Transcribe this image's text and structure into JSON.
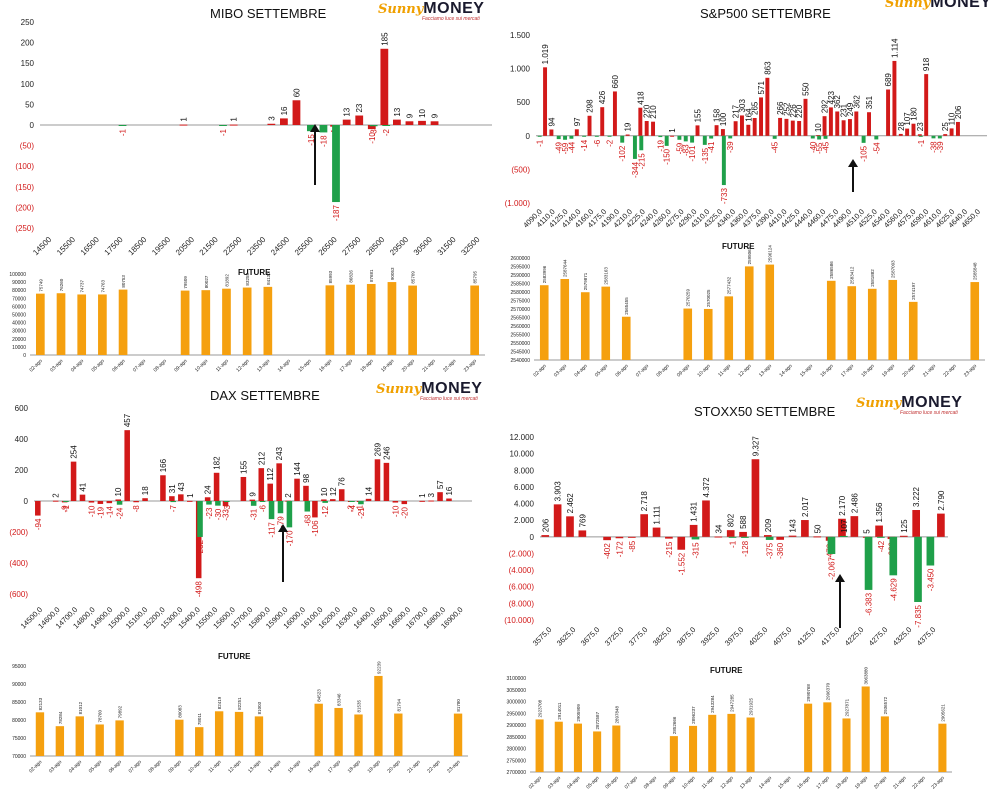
{
  "brand": {
    "sunny": "Sunny",
    "money": "MONEY",
    "tagline": "Facciamo luce sui mercati"
  },
  "colors": {
    "positive": "#1fa04a",
    "negative": "#d21919",
    "future": "#f5a00f",
    "axis": "#999999"
  },
  "future_label": "FUTURE",
  "chart_data": [
    {
      "id": "mibo",
      "type": "bar",
      "title": "MIBO SETTEMBRE",
      "ylim": [
        -250,
        250
      ],
      "yticks": [
        250,
        200,
        150,
        100,
        50,
        0,
        -50,
        -100,
        -150,
        -200,
        -250
      ],
      "ytick_labels": [
        "250",
        "200",
        "150",
        "100",
        "50",
        "0",
        "(50)",
        "(100)",
        "(150)",
        "(200)",
        "(250)"
      ],
      "x_tick_labels": [
        "14500",
        "15500",
        "16500",
        "17500",
        "18500",
        "19500",
        "20500",
        "21500",
        "22500",
        "23500",
        "24500",
        "25500",
        "26500",
        "27500",
        "28500",
        "29500",
        "30500",
        "31500",
        "32500"
      ],
      "n_slots": 36,
      "series": [
        {
          "name": "Call",
          "values": [
            null,
            null,
            null,
            null,
            null,
            null,
            null,
            null,
            null,
            null,
            null,
            1,
            null,
            null,
            null,
            1,
            null,
            null,
            3,
            16,
            60,
            null,
            null,
            -4,
            13,
            23,
            -10,
            185,
            13,
            9,
            10,
            9,
            null,
            null,
            null,
            null
          ]
        },
        {
          "name": "Put",
          "values": [
            null,
            null,
            null,
            null,
            null,
            null,
            -1,
            null,
            null,
            null,
            null,
            null,
            null,
            null,
            -1,
            null,
            null,
            null,
            null,
            null,
            null,
            -15,
            -18,
            -187,
            null,
            null,
            -3,
            -2,
            null,
            null,
            null,
            null,
            null,
            null,
            null,
            null
          ]
        }
      ]
    },
    {
      "id": "spx",
      "type": "bar",
      "title": "S&P500 SETTEMBRE",
      "ylim": [
        -1000,
        1500
      ],
      "yticks": [
        1500,
        1000,
        500,
        0,
        -500,
        -1000
      ],
      "ytick_labels": [
        "1.500",
        "1.000",
        "500",
        "0",
        "(500)",
        "(1.000)"
      ],
      "x_tick_labels": [
        "4090,0",
        "4110,0",
        "4125,0",
        "4140,0",
        "4160,0",
        "4175,0",
        "4190,0",
        "4210,0",
        "4225,0",
        "4240,0",
        "4260,0",
        "4275,0",
        "4290,0",
        "4310,0",
        "4325,0",
        "4340,0",
        "4360,0",
        "4375,0",
        "4390,0",
        "4410,0",
        "4425,0",
        "4440,0",
        "4460,0",
        "4475,0",
        "4490,0",
        "4510,0",
        "4525,0",
        "4540,0",
        "4560,0",
        "4575,0",
        "4590,0",
        "4610,0",
        "4625,0",
        "4640,0",
        "4650,0"
      ],
      "n_slots": 71,
      "series": [
        {
          "name": "Call",
          "values": [
            null,
            1019,
            94,
            null,
            null,
            null,
            97,
            null,
            298,
            null,
            426,
            null,
            660,
            null,
            19,
            null,
            418,
            220,
            210,
            null,
            null,
            1,
            null,
            null,
            null,
            155,
            null,
            null,
            158,
            100,
            null,
            217,
            303,
            164,
            265,
            571,
            863,
            null,
            266,
            252,
            226,
            220,
            550,
            null,
            10,
            292,
            423,
            362,
            231,
            249,
            362,
            null,
            351,
            null,
            null,
            689,
            1114,
            28,
            107,
            180,
            23,
            918,
            null,
            null,
            25,
            110,
            206,
            null,
            null,
            null,
            null
          ]
        },
        {
          "name": "Put",
          "values": [
            -1,
            null,
            null,
            -49,
            -59,
            -44,
            null,
            -14,
            null,
            -6,
            null,
            -2,
            null,
            -102,
            null,
            -344,
            -215,
            null,
            null,
            -19,
            -150,
            null,
            -59,
            -83,
            -101,
            null,
            -135,
            -41,
            null,
            -733,
            -39,
            null,
            null,
            null,
            null,
            null,
            null,
            -45,
            null,
            null,
            null,
            null,
            null,
            -40,
            -55,
            -45,
            null,
            null,
            null,
            null,
            null,
            -105,
            null,
            -54,
            null,
            null,
            null,
            null,
            null,
            null,
            -1,
            null,
            -38,
            -39,
            null,
            null,
            null,
            null,
            null,
            null,
            null
          ]
        }
      ]
    },
    {
      "id": "dax",
      "type": "bar",
      "title": "DAX SETTEMBRE",
      "ylim": [
        -600,
        600
      ],
      "yticks": [
        600,
        400,
        200,
        0,
        -200,
        -400,
        -600
      ],
      "ytick_labels": [
        "600",
        "400",
        "200",
        "0",
        "(200)",
        "(400)",
        "(600)"
      ],
      "x_tick_labels": [
        "14500,0",
        "14600,0",
        "14700,0",
        "14800,0",
        "14900,0",
        "15000,0",
        "15100,0",
        "15200,0",
        "15300,0",
        "15400,0",
        "15500,0",
        "15600,0",
        "15700,0",
        "15800,0",
        "15900,0",
        "16000,0",
        "16100,0",
        "16200,0",
        "16300,0",
        "16400,0",
        "16500,0",
        "16600,0",
        "16700,0",
        "16800,0",
        "16900,0"
      ],
      "n_slots": 49,
      "series": [
        {
          "name": "Call",
          "values": [
            -94,
            null,
            2,
            -9,
            254,
            41,
            -10,
            -19,
            -14,
            10,
            457,
            -8,
            18,
            null,
            166,
            31,
            43,
            1,
            -498,
            24,
            182,
            -33,
            null,
            155,
            9,
            212,
            112,
            243,
            2,
            144,
            98,
            -106,
            10,
            12,
            76,
            -2,
            -1,
            14,
            269,
            246,
            -10,
            -20,
            null,
            1,
            3,
            57,
            16,
            null,
            null
          ]
        },
        {
          "name": "Put",
          "values": [
            null,
            null,
            null,
            -1,
            null,
            null,
            null,
            null,
            null,
            -24,
            null,
            null,
            null,
            null,
            null,
            -7,
            null,
            null,
            -232,
            -23,
            -30,
            -3,
            null,
            null,
            -31,
            -6,
            -117,
            -79,
            -170,
            null,
            -68,
            null,
            -12,
            null,
            null,
            -4,
            -21,
            null,
            null,
            null,
            null,
            null,
            null,
            null,
            null,
            null,
            null,
            null,
            null
          ]
        }
      ]
    },
    {
      "id": "stoxx",
      "type": "bar",
      "title": "STOXX50 SETTEMBRE",
      "ylim": [
        -10000,
        12000
      ],
      "yticks": [
        12000,
        10000,
        8000,
        6000,
        4000,
        2000,
        0,
        -2000,
        -4000,
        -6000,
        -8000,
        -10000
      ],
      "ytick_labels": [
        "12.000",
        "10.000",
        "8.000",
        "6.000",
        "4.000",
        "2.000",
        "0",
        "(2.000)",
        "(4.000)",
        "(6.000)",
        "(8.000)",
        "(10.000)"
      ],
      "x_tick_labels": [
        "3575,0",
        "3625,0",
        "3675,0",
        "3725,0",
        "3775,0",
        "3825,0",
        "3875,0",
        "3925,0",
        "3975,0",
        "4025,0",
        "4075,0",
        "4125,0",
        "4175,0",
        "4225,0",
        "4275,0",
        "4325,0",
        "4375,0"
      ],
      "n_slots": 33,
      "series": [
        {
          "name": "Call",
          "values": [
            206,
            3903,
            2462,
            769,
            null,
            -402,
            -172,
            -85,
            2718,
            1111,
            -215,
            -1552,
            1431,
            4372,
            34,
            802,
            588,
            9327,
            209,
            -360,
            143,
            2017,
            50,
            -473,
            2170,
            2486,
            5,
            1356,
            -269,
            125,
            3222,
            null,
            2790
          ]
        },
        {
          "name": "Put",
          "values": [
            null,
            null,
            null,
            null,
            null,
            null,
            null,
            null,
            null,
            null,
            null,
            null,
            -315,
            null,
            null,
            -1,
            -128,
            null,
            -375,
            null,
            null,
            null,
            null,
            -2067,
            107,
            null,
            -6383,
            -42,
            -4629,
            null,
            -7835,
            -3450,
            null
          ]
        }
      ]
    }
  ],
  "future_data": [
    {
      "id": "mibo_future",
      "title": "FUTURE",
      "ylim": [
        0,
        100000
      ],
      "yticks": [
        100000,
        90000,
        80000,
        70000,
        60000,
        50000,
        40000,
        30000,
        20000,
        10000,
        0
      ],
      "ytick_labels": [
        "100000",
        "90000",
        "80000",
        "70000",
        "60000",
        "50000",
        "40000",
        "30000",
        "20000",
        "10000",
        "0"
      ],
      "categories": [
        "02-ago",
        "03-ago",
        "04-ago",
        "05-ago",
        "06-ago",
        "07-ago",
        "08-ago",
        "09-ago",
        "10-ago",
        "11-ago",
        "12-ago",
        "13-ago",
        "14-ago",
        "15-ago",
        "16-ago",
        "17-ago",
        "18-ago",
        "19-ago",
        "20-ago",
        "21-ago",
        "22-ago",
        "23-ago"
      ],
      "values": [
        75749,
        76260,
        74737,
        74763,
        80753,
        null,
        null,
        79509,
        80027,
        81892,
        83258,
        84130,
        null,
        null,
        85993,
        86826,
        87681,
        90053,
        85709,
        null,
        null,
        85795
      ],
      "value_labels": [
        "75749",
        "76260",
        "74737",
        "74763",
        "80753",
        "",
        "",
        "79509",
        "80027",
        "81892",
        "83258",
        "84130",
        "",
        "",
        "85993",
        "86826",
        "87681",
        "90053",
        "85709",
        "",
        "",
        "85795"
      ]
    },
    {
      "id": "spx_future",
      "title": "FUTURE",
      "ylim": [
        2540000,
        2600000
      ],
      "yticks": [
        2600000,
        2595000,
        2590000,
        2585000,
        2580000,
        2575000,
        2570000,
        2565000,
        2560000,
        2555000,
        2550000,
        2545000,
        2540000
      ],
      "ytick_labels": [
        "2600000",
        "2595000",
        "2590000",
        "2585000",
        "2580000",
        "2575000",
        "2570000",
        "2565000",
        "2560000",
        "2555000",
        "2550000",
        "2545000",
        "2540000"
      ],
      "categories": [
        "02-ago",
        "03-ago",
        "04-ago",
        "05-ago",
        "06-ago",
        "07-ago",
        "08-ago",
        "09-ago",
        "10-ago",
        "11-ago",
        "12-ago",
        "13-ago",
        "14-ago",
        "15-ago",
        "16-ago",
        "17-ago",
        "18-ago",
        "19-ago",
        "20-ago",
        "21-ago",
        "22-ago",
        "23-ago"
      ],
      "values": [
        2583996,
        2587644,
        2579871,
        2583163,
        2565455,
        null,
        null,
        2570259,
        2570025,
        2577432,
        2595064,
        2596124,
        null,
        null,
        2586586,
        2583412,
        2581882,
        2587093,
        2574197,
        null,
        null,
        2585848
      ],
      "value_labels": [
        "2583996",
        "2587644",
        "2579871",
        "2583163",
        "2565455",
        "",
        "",
        "2570259",
        "2570025",
        "2577432",
        "2595064",
        "2596124",
        "",
        "",
        "2586586",
        "2583412",
        "2581882",
        "2587093",
        "2574197",
        "",
        "",
        "2585848"
      ]
    },
    {
      "id": "dax_future",
      "title": "FUTURE",
      "ylim": [
        70000,
        95000
      ],
      "yticks": [
        95000,
        90000,
        85000,
        80000,
        75000,
        70000
      ],
      "ytick_labels": [
        "95000",
        "90000",
        "85000",
        "80000",
        "75000",
        "70000"
      ],
      "categories": [
        "02-ago",
        "03-ago",
        "04-ago",
        "05-ago",
        "06-ago",
        "07-ago",
        "08-ago",
        "09-ago",
        "10-ago",
        "11-ago",
        "12-ago",
        "13-ago",
        "14-ago",
        "15-ago",
        "16-ago",
        "17-ago",
        "18-ago",
        "19-ago",
        "20-ago",
        "21-ago",
        "22-ago",
        "23-ago"
      ],
      "values": [
        82133,
        78284,
        81012,
        78760,
        79892,
        null,
        null,
        80083,
        78011,
        82419,
        82251,
        81003,
        null,
        null,
        84523,
        83346,
        81535,
        92239,
        81794,
        null,
        null,
        81780
      ],
      "value_labels": [
        "82133",
        "78284",
        "81012",
        "78760",
        "79892",
        "",
        "",
        "80083",
        "78011",
        "82419",
        "82251",
        "81003",
        "",
        "",
        "84523",
        "83346",
        "81535",
        "92239",
        "81794",
        "",
        "",
        "81780"
      ]
    },
    {
      "id": "stoxx_future",
      "title": "FUTURE",
      "ylim": [
        2700000,
        3100000
      ],
      "yticks": [
        3100000,
        3050000,
        3000000,
        2950000,
        2900000,
        2850000,
        2800000,
        2750000,
        2700000
      ],
      "ytick_labels": [
        "3100000",
        "3050000",
        "3000000",
        "2950000",
        "2900000",
        "2850000",
        "2800000",
        "2750000",
        "2700000"
      ],
      "categories": [
        "02-ago",
        "03-ago",
        "04-ago",
        "05-ago",
        "06-ago",
        "07-ago",
        "08-ago",
        "09-ago",
        "10-ago",
        "11-ago",
        "12-ago",
        "13-ago",
        "14-ago",
        "15-ago",
        "16-ago",
        "17-ago",
        "18-ago",
        "19-ago",
        "20-ago",
        "21-ago",
        "22-ago",
        "23-ago"
      ],
      "values": [
        2923708,
        2914011,
        2905909,
        2872587,
        2897848,
        null,
        null,
        2852666,
        2896237,
        2943284,
        2947285,
        2931925,
        null,
        null,
        2990768,
        2996370,
        2927871,
        3063880,
        2936572,
        null,
        null,
        2905621
      ],
      "value_labels": [
        "2923708",
        "2914011",
        "2905909",
        "2872587",
        "2897848",
        "",
        "",
        "2852666",
        "2896237",
        "2943284",
        "2947285",
        "2931925",
        "",
        "",
        "2990768",
        "2996370",
        "2927871",
        "3063880",
        "2936572",
        "",
        "",
        "2905621"
      ]
    }
  ]
}
